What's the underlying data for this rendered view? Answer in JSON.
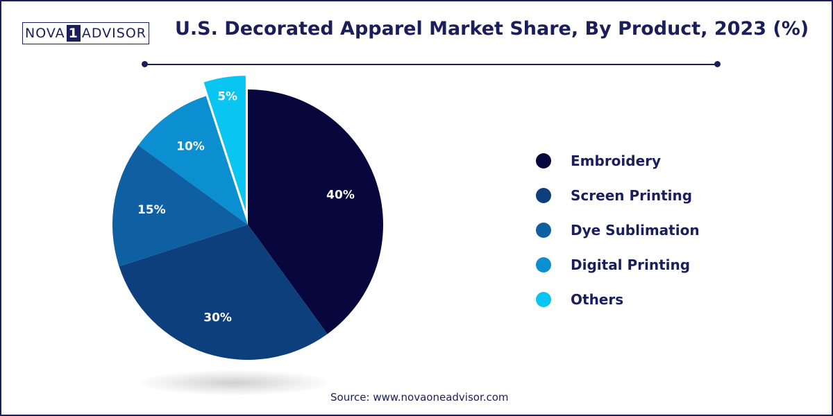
{
  "logo": {
    "part1": "NOVA",
    "part2": "1",
    "part3": "ADVISOR"
  },
  "title": "U.S. Decorated Apparel Market Share, By Product, 2023 (%)",
  "source": "Source: www.novaoneadvisor.com",
  "chart_data": {
    "type": "pie",
    "title": "U.S. Decorated Apparel Market Share, By Product, 2023 (%)",
    "categories": [
      "Embroidery",
      "Screen Printing",
      "Dye Sublimation",
      "Digital Printing",
      "Others"
    ],
    "values": [
      40,
      30,
      15,
      10,
      5
    ],
    "labels": [
      "40%",
      "30%",
      "15%",
      "10%",
      "5%"
    ],
    "colors": [
      "#07073d",
      "#0d3f7c",
      "#0f5fa3",
      "#0b8fd0",
      "#08c5f2"
    ],
    "label_color": "#ffffff",
    "legend": "right",
    "start": "12 o'clock, clockwise",
    "exploded_slice": "Others"
  }
}
